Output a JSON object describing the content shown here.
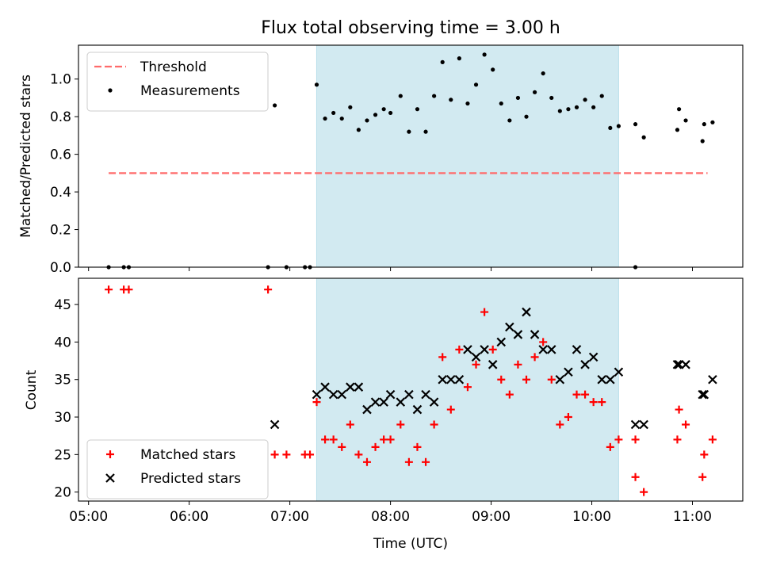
{
  "chart_data": [
    {
      "type": "scatter",
      "title": "Flux total observing time = 3.00 h",
      "xlabel": "",
      "ylabel": "Matched/Predicted stars",
      "xlim": [
        "04:54",
        "11:30"
      ],
      "ylim": [
        0,
        1.18
      ],
      "yticks": [
        0.0,
        0.2,
        0.4,
        0.6,
        0.8,
        1.0
      ],
      "ytick_labels": [
        "0.0",
        "0.2",
        "0.4",
        "0.6",
        "0.8",
        "1.0"
      ],
      "shaded_span": [
        "07:16",
        "10:16"
      ],
      "shaded_color": "#add8e6",
      "legend_position": "top-left",
      "threshold": {
        "name": "Threshold",
        "value": 0.5,
        "x_range": [
          "05:12",
          "11:09"
        ],
        "color": "#ff6b6b"
      },
      "series": [
        {
          "name": "Measurements",
          "marker": "dot",
          "color": "#000000",
          "points": [
            [
              "05:12",
              0.0
            ],
            [
              "05:21",
              0.0
            ],
            [
              "05:24",
              0.0
            ],
            [
              "06:47",
              0.0
            ],
            [
              "06:51",
              0.86
            ],
            [
              "06:58",
              0.0
            ],
            [
              "07:09",
              0.0
            ],
            [
              "07:12",
              0.0
            ],
            [
              "07:16",
              0.97
            ],
            [
              "07:21",
              0.79
            ],
            [
              "07:26",
              0.82
            ],
            [
              "07:31",
              0.79
            ],
            [
              "07:36",
              0.85
            ],
            [
              "07:41",
              0.73
            ],
            [
              "07:46",
              0.78
            ],
            [
              "07:51",
              0.81
            ],
            [
              "07:56",
              0.84
            ],
            [
              "08:00",
              0.82
            ],
            [
              "08:06",
              0.91
            ],
            [
              "08:11",
              0.72
            ],
            [
              "08:16",
              0.84
            ],
            [
              "08:21",
              0.72
            ],
            [
              "08:26",
              0.91
            ],
            [
              "08:31",
              1.09
            ],
            [
              "08:36",
              0.89
            ],
            [
              "08:41",
              1.11
            ],
            [
              "08:46",
              0.87
            ],
            [
              "08:51",
              0.97
            ],
            [
              "08:56",
              1.13
            ],
            [
              "09:01",
              1.05
            ],
            [
              "09:06",
              0.87
            ],
            [
              "09:11",
              0.78
            ],
            [
              "09:16",
              0.9
            ],
            [
              "09:21",
              0.8
            ],
            [
              "09:26",
              0.93
            ],
            [
              "09:31",
              1.03
            ],
            [
              "09:36",
              0.9
            ],
            [
              "09:41",
              0.83
            ],
            [
              "09:46",
              0.84
            ],
            [
              "09:51",
              0.85
            ],
            [
              "09:56",
              0.89
            ],
            [
              "10:01",
              0.85
            ],
            [
              "10:06",
              0.91
            ],
            [
              "10:11",
              0.74
            ],
            [
              "10:16",
              0.75
            ],
            [
              "10:26",
              0.0
            ],
            [
              "10:26",
              0.76
            ],
            [
              "10:31",
              0.69
            ],
            [
              "10:51",
              0.73
            ],
            [
              "10:52",
              0.84
            ],
            [
              "10:56",
              0.78
            ],
            [
              "11:06",
              0.67
            ],
            [
              "11:07",
              0.76
            ],
            [
              "11:12",
              0.77
            ]
          ]
        }
      ]
    },
    {
      "type": "scatter",
      "title": "",
      "xlabel": "Time (UTC)",
      "ylabel": "Count",
      "xlim": [
        "04:54",
        "11:30"
      ],
      "ylim": [
        18.8,
        48.5
      ],
      "yticks": [
        20,
        25,
        30,
        35,
        40,
        45
      ],
      "ytick_labels": [
        "20",
        "25",
        "30",
        "35",
        "40",
        "45"
      ],
      "xticks": [
        "05:00",
        "06:00",
        "07:00",
        "08:00",
        "09:00",
        "10:00",
        "11:00"
      ],
      "xtick_labels": [
        "05:00",
        "06:00",
        "07:00",
        "08:00",
        "09:00",
        "10:00",
        "11:00"
      ],
      "shaded_span": [
        "07:16",
        "10:16"
      ],
      "shaded_color": "#add8e6",
      "legend_position": "bottom-left",
      "series": [
        {
          "name": "Matched stars",
          "marker": "plus",
          "color": "#ff0000",
          "points": [
            [
              "05:12",
              47
            ],
            [
              "05:21",
              47
            ],
            [
              "05:24",
              47
            ],
            [
              "06:47",
              47
            ],
            [
              "06:51",
              25
            ],
            [
              "06:58",
              25
            ],
            [
              "07:09",
              25
            ],
            [
              "07:12",
              25
            ],
            [
              "07:16",
              32
            ],
            [
              "07:21",
              27
            ],
            [
              "07:26",
              27
            ],
            [
              "07:31",
              26
            ],
            [
              "07:36",
              29
            ],
            [
              "07:41",
              25
            ],
            [
              "07:46",
              24
            ],
            [
              "07:51",
              26
            ],
            [
              "07:56",
              27
            ],
            [
              "08:00",
              27
            ],
            [
              "08:06",
              29
            ],
            [
              "08:11",
              24
            ],
            [
              "08:16",
              26
            ],
            [
              "08:21",
              24
            ],
            [
              "08:26",
              29
            ],
            [
              "08:31",
              38
            ],
            [
              "08:36",
              31
            ],
            [
              "08:41",
              39
            ],
            [
              "08:46",
              34
            ],
            [
              "08:51",
              37
            ],
            [
              "08:56",
              44
            ],
            [
              "09:01",
              39
            ],
            [
              "09:06",
              35
            ],
            [
              "09:11",
              33
            ],
            [
              "09:16",
              37
            ],
            [
              "09:21",
              35
            ],
            [
              "09:26",
              38
            ],
            [
              "09:31",
              40
            ],
            [
              "09:36",
              35
            ],
            [
              "09:41",
              29
            ],
            [
              "09:46",
              30
            ],
            [
              "09:51",
              33
            ],
            [
              "09:56",
              33
            ],
            [
              "10:01",
              32
            ],
            [
              "10:06",
              32
            ],
            [
              "10:11",
              26
            ],
            [
              "10:16",
              27
            ],
            [
              "10:26",
              27
            ],
            [
              "10:26",
              22
            ],
            [
              "10:31",
              20
            ],
            [
              "10:51",
              27
            ],
            [
              "10:52",
              31
            ],
            [
              "10:56",
              29
            ],
            [
              "11:06",
              22
            ],
            [
              "11:07",
              25
            ],
            [
              "11:12",
              27
            ]
          ]
        },
        {
          "name": "Predicted stars",
          "marker": "x",
          "color": "#000000",
          "points": [
            [
              "06:51",
              29
            ],
            [
              "07:16",
              33
            ],
            [
              "07:21",
              34
            ],
            [
              "07:26",
              33
            ],
            [
              "07:31",
              33
            ],
            [
              "07:36",
              34
            ],
            [
              "07:41",
              34
            ],
            [
              "07:46",
              31
            ],
            [
              "07:51",
              32
            ],
            [
              "07:56",
              32
            ],
            [
              "08:00",
              33
            ],
            [
              "08:06",
              32
            ],
            [
              "08:11",
              33
            ],
            [
              "08:16",
              31
            ],
            [
              "08:21",
              33
            ],
            [
              "08:26",
              32
            ],
            [
              "08:31",
              35
            ],
            [
              "08:36",
              35
            ],
            [
              "08:41",
              35
            ],
            [
              "08:46",
              39
            ],
            [
              "08:51",
              38
            ],
            [
              "08:56",
              39
            ],
            [
              "09:01",
              37
            ],
            [
              "09:06",
              40
            ],
            [
              "09:11",
              42
            ],
            [
              "09:16",
              41
            ],
            [
              "09:21",
              44
            ],
            [
              "09:26",
              41
            ],
            [
              "09:31",
              39
            ],
            [
              "09:36",
              39
            ],
            [
              "09:41",
              35
            ],
            [
              "09:46",
              36
            ],
            [
              "09:51",
              39
            ],
            [
              "09:56",
              37
            ],
            [
              "10:01",
              38
            ],
            [
              "10:06",
              35
            ],
            [
              "10:11",
              35
            ],
            [
              "10:16",
              36
            ],
            [
              "10:26",
              29
            ],
            [
              "10:31",
              29
            ],
            [
              "10:51",
              37
            ],
            [
              "10:52",
              37
            ],
            [
              "10:56",
              37
            ],
            [
              "11:06",
              33
            ],
            [
              "11:07",
              33
            ],
            [
              "11:12",
              35
            ]
          ]
        }
      ]
    }
  ]
}
